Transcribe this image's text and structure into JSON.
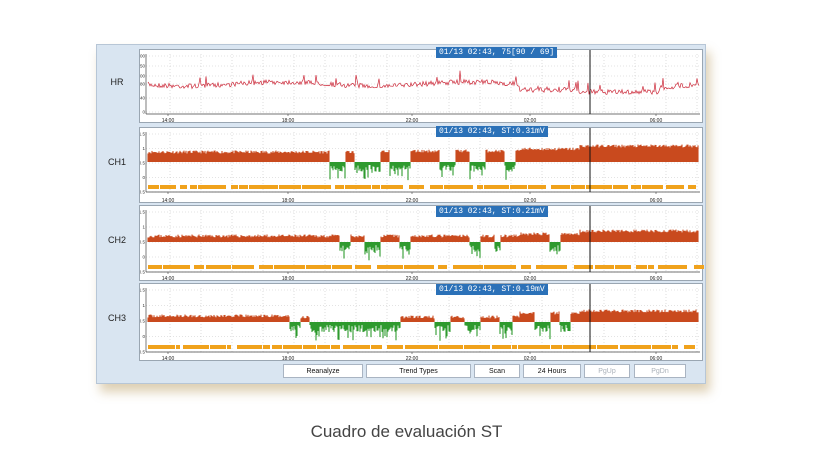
{
  "channels": [
    {
      "id": "HR",
      "label": "HR",
      "badge": "01/13 02:43, 75[90 / 69]",
      "yticks": [
        "200",
        "150",
        "100",
        "80",
        "40",
        "0"
      ]
    },
    {
      "id": "CH1",
      "label": "CH1",
      "badge": "01/13 02:43, ST:0.31mV",
      "yticks": [
        "1.5",
        "1",
        "0.5",
        "0",
        "-0.5"
      ]
    },
    {
      "id": "CH2",
      "label": "CH2",
      "badge": "01/13 02:43, ST:0.21mV",
      "yticks": [
        "1.5",
        "1",
        "0.5",
        "0",
        "-0.5"
      ]
    },
    {
      "id": "CH3",
      "label": "CH3",
      "badge": "01/13 02:43, ST:0.19mV",
      "yticks": [
        "1.5",
        "1",
        "0.5",
        "0",
        "-0.5"
      ]
    }
  ],
  "time_labels": [
    "14:00",
    "18:00",
    "22:00",
    "02:00",
    "06:00"
  ],
  "buttons": {
    "reanalyze": "Reanalyze",
    "trend_types": "Trend Types",
    "scan": "Scan",
    "hours": "24 Hours",
    "pgup": "PgUp",
    "pgdn": "PgDn"
  },
  "caption": "Cuadro de evaluación ST",
  "colors": {
    "hr_line": "#cc2a3a",
    "st_elevation": "#c94a1e",
    "st_depression": "#2f9a2f",
    "artifact_bar": "#f0a21c",
    "badge": "#2b71b8"
  }
}
